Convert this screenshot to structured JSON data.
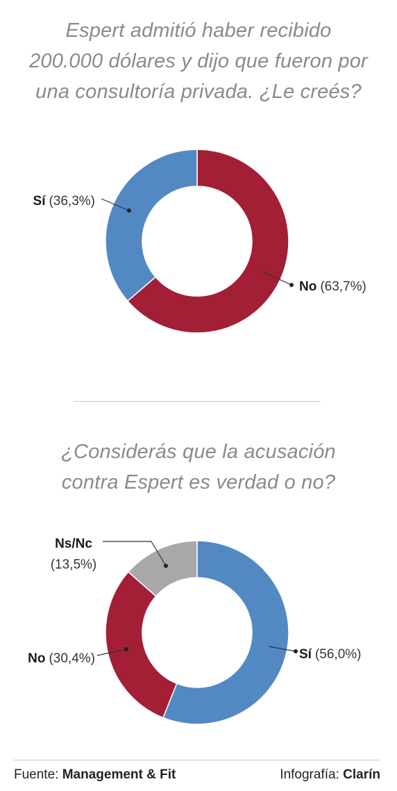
{
  "chart_data": [
    {
      "type": "pie",
      "donut": true,
      "title_lines": [
        "Espert admitió haber recibido",
        "200.000 dólares y dijo que fueron por",
        "una consultoría privada. ¿Le creés?"
      ],
      "slices": [
        {
          "label": "Sí",
          "value": 36.3,
          "value_text": "(36,3%)",
          "color": "#5389c3"
        },
        {
          "label": "No",
          "value": 63.7,
          "value_text": "(63,7%)",
          "color": "#a31f36"
        }
      ]
    },
    {
      "type": "pie",
      "donut": true,
      "title_lines": [
        "¿Considerás que la acusación",
        "contra Espert es verdad o no?"
      ],
      "slices": [
        {
          "label": "Sí",
          "value": 56.0,
          "value_text": "(56,0%)",
          "color": "#5389c3"
        },
        {
          "label": "No",
          "value": 30.4,
          "value_text": "(30,4%)",
          "color": "#a31f36"
        },
        {
          "label": "Ns/Nc",
          "value": 13.5,
          "value_text": "(13,5%)",
          "color": "#a8a8a8"
        }
      ]
    }
  ],
  "footer": {
    "source_prefix": "Fuente:",
    "source_name": "Management & Fit",
    "credit_prefix": "Infografía:",
    "credit_name": "Clarín"
  }
}
